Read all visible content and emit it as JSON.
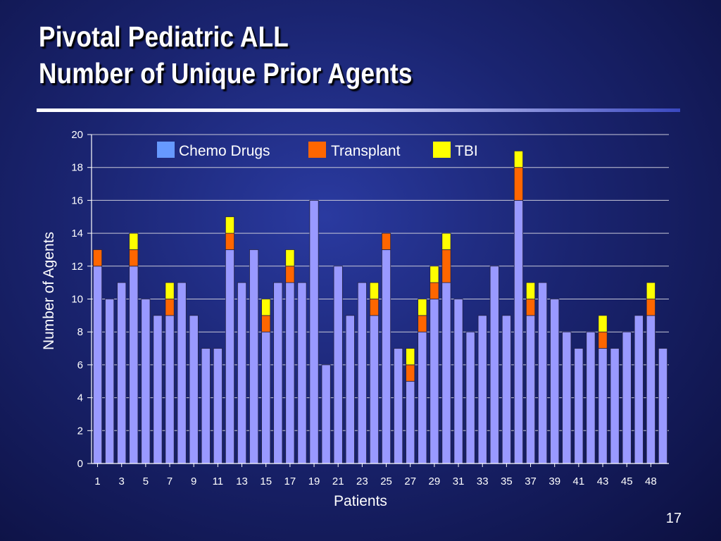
{
  "slide": {
    "title_line1": "Pivotal Pediatric ALL",
    "title_line2": "Number of Unique Prior Agents",
    "page_number": "17"
  },
  "colors": {
    "chemo": "#9999ff",
    "transplant": "#ff6600",
    "tbi": "#ffff00",
    "legend_chemo": "#6699ff"
  },
  "chart_data": {
    "type": "bar",
    "stacked": true,
    "xlabel": "Patients",
    "ylabel": "Number of Agents",
    "ylim": [
      0,
      20
    ],
    "yticks": [
      0,
      2,
      4,
      6,
      8,
      10,
      12,
      14,
      16,
      18,
      20
    ],
    "grid": true,
    "legend_placement": "top",
    "categories": [
      1,
      2,
      3,
      4,
      5,
      6,
      7,
      8,
      9,
      10,
      11,
      12,
      13,
      14,
      15,
      16,
      17,
      18,
      19,
      20,
      21,
      22,
      23,
      24,
      25,
      26,
      27,
      28,
      29,
      30,
      31,
      32,
      33,
      34,
      35,
      36,
      37,
      38,
      39,
      40,
      41,
      42,
      43,
      44,
      45,
      46,
      48,
      49
    ],
    "x_tick_labels": [
      "1",
      "3",
      "5",
      "7",
      "9",
      "11",
      "13",
      "15",
      "17",
      "19",
      "21",
      "23",
      "25",
      "27",
      "29",
      "31",
      "33",
      "35",
      "37",
      "39",
      "41",
      "43",
      "45",
      "48"
    ],
    "series": [
      {
        "name": "Chemo Drugs",
        "values": [
          12,
          10,
          11,
          12,
          10,
          9,
          9,
          11,
          9,
          7,
          7,
          13,
          11,
          13,
          8,
          11,
          11,
          11,
          16,
          6,
          12,
          9,
          11,
          9,
          13,
          7,
          5,
          8,
          10,
          11,
          10,
          8,
          9,
          12,
          9,
          16,
          9,
          11,
          10,
          8,
          7,
          8,
          7,
          7,
          8,
          9,
          9,
          7
        ]
      },
      {
        "name": "Transplant",
        "values": [
          1,
          0,
          0,
          1,
          0,
          0,
          1,
          0,
          0,
          0,
          0,
          1,
          0,
          0,
          1,
          0,
          1,
          0,
          0,
          0,
          0,
          0,
          0,
          1,
          1,
          0,
          1,
          1,
          1,
          2,
          0,
          0,
          0,
          0,
          0,
          2,
          1,
          0,
          0,
          0,
          0,
          0,
          1,
          0,
          0,
          0,
          1,
          0
        ]
      },
      {
        "name": "TBI",
        "values": [
          0,
          0,
          0,
          1,
          0,
          0,
          1,
          0,
          0,
          0,
          0,
          1,
          0,
          0,
          1,
          0,
          1,
          0,
          0,
          0,
          0,
          0,
          0,
          1,
          0,
          0,
          1,
          1,
          1,
          1,
          0,
          0,
          0,
          0,
          0,
          1,
          1,
          0,
          0,
          0,
          0,
          0,
          1,
          0,
          0,
          0,
          1,
          0
        ]
      }
    ]
  }
}
